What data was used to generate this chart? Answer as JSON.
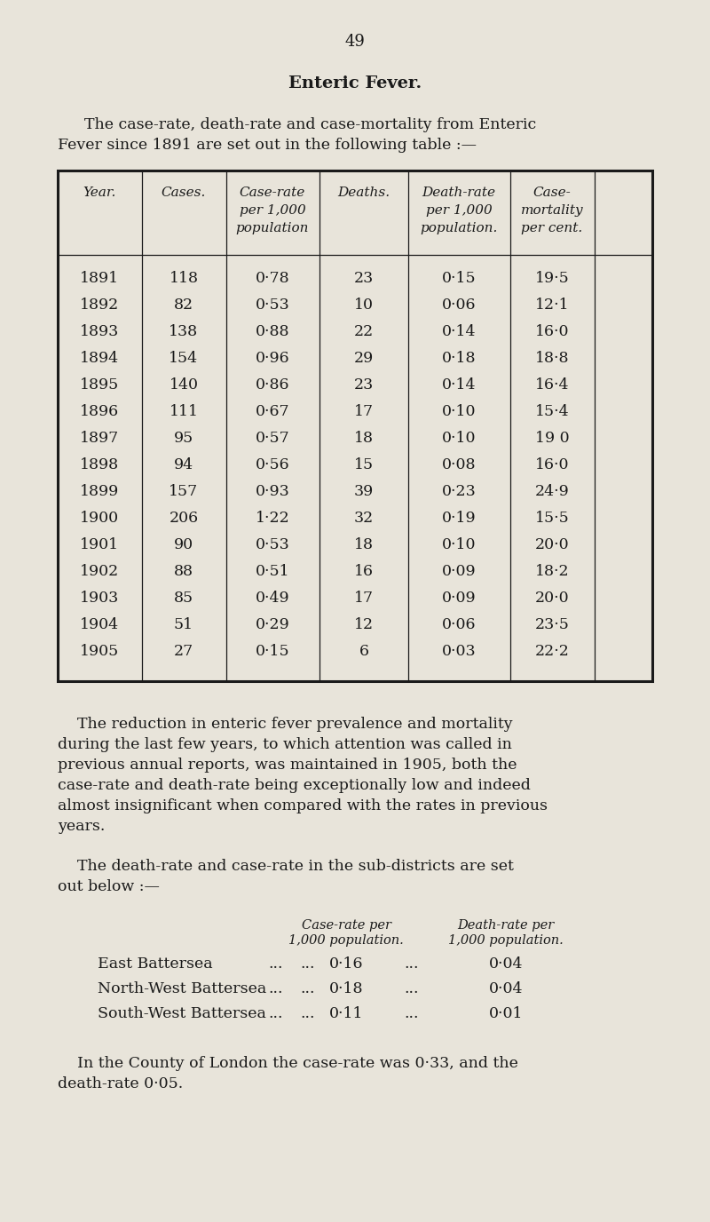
{
  "page_number": "49",
  "title": "Enteric Fever.",
  "intro_line1": "The case-rate, death-rate and case-mortality from Enteric",
  "intro_line2": "Fever since 1891 are set out in the following table :—",
  "table_headers_row1": [
    "Year.",
    "Cases.",
    "Case-rate",
    "Deaths.",
    "Death-rate",
    "Case-"
  ],
  "table_headers_row2": [
    "",
    "",
    "per 1,000",
    "",
    "per 1,000",
    "mortality"
  ],
  "table_headers_row3": [
    "",
    "",
    "population",
    "",
    "population.",
    "per cent."
  ],
  "table_data": [
    [
      "1891",
      "118",
      "0·78",
      "23",
      "0·15",
      "19·5"
    ],
    [
      "1892",
      "82",
      "0·53",
      "10",
      "0·06",
      "12·1"
    ],
    [
      "1893",
      "138",
      "0·88",
      "22",
      "0·14",
      "16·0"
    ],
    [
      "1894",
      "154",
      "0·96",
      "29",
      "0·18",
      "18·8"
    ],
    [
      "1895",
      "140",
      "0·86",
      "23",
      "0·14",
      "16·4"
    ],
    [
      "1896",
      "111",
      "0·67",
      "17",
      "0·10",
      "15·4"
    ],
    [
      "1897",
      "95",
      "0·57",
      "18",
      "0·10",
      "19 0"
    ],
    [
      "1898",
      "94",
      "0·56",
      "15",
      "0·08",
      "16·0"
    ],
    [
      "1899",
      "157",
      "0·93",
      "39",
      "0·23",
      "24·9"
    ],
    [
      "1900",
      "206",
      "1·22",
      "32",
      "0·19",
      "15·5"
    ],
    [
      "1901",
      "90",
      "0·53",
      "18",
      "0·10",
      "20·0"
    ],
    [
      "1902",
      "88",
      "0·51",
      "16",
      "0·09",
      "18·2"
    ],
    [
      "1903",
      "85",
      "0·49",
      "17",
      "0·09",
      "20·0"
    ],
    [
      "1904",
      "51",
      "0·29",
      "12",
      "0·06",
      "23·5"
    ],
    [
      "1905",
      "27",
      "0·15",
      "6",
      "0·03",
      "22·2"
    ]
  ],
  "body_lines": [
    "    The reduction in enteric fever prevalence and mortality",
    "during the last few years, to which attention was called in",
    "previous annual reports, was maintained in 1905, both the",
    "case-rate and death-rate being exceptionally low and indeed",
    "almost insignificant when compared with the rates in previous",
    "years."
  ],
  "subdist_intro_lines": [
    "    The death-rate and case-rate in the sub-districts are set",
    "out below :—"
  ],
  "subdist_col1_line1": "Case-rate per",
  "subdist_col1_line2": "1,000 population.",
  "subdist_col2_line1": "Death-rate per",
  "subdist_col2_line2": "1,000 population.",
  "subdistricts": [
    [
      "East Battersea",
      "...",
      "...",
      "0·16",
      "...",
      "0·04"
    ],
    [
      "North-West Battersea",
      "...",
      "...",
      "0·18",
      "...",
      "0·04"
    ],
    [
      "South-West Battersea",
      "...",
      "...",
      "0·11",
      "...",
      "0·01"
    ]
  ],
  "london_lines": [
    "    In the County of London the case-rate was 0·33, and the",
    "death-rate 0·05."
  ],
  "bg_color": "#e8e4da",
  "text_color": "#1a1a1a",
  "fs_body": 12.5,
  "fs_title": 14,
  "fs_header": 11,
  "fs_table": 12.5,
  "fs_small": 10.5
}
